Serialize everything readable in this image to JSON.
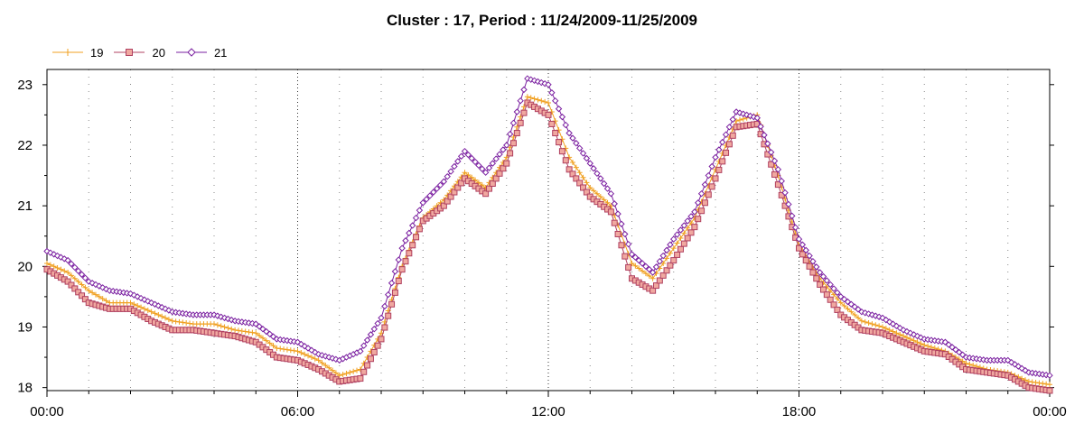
{
  "chart_data": {
    "type": "line",
    "title": "Cluster : 17, Period : 11/24/2009-11/25/2009",
    "xlabel": "",
    "ylabel": "",
    "x_tick_labels": [
      "00:00",
      "06:00",
      "12:00",
      "18:00",
      "00:00"
    ],
    "y_ticks": [
      18,
      19,
      20,
      21,
      22,
      23
    ],
    "xlim": [
      0,
      24
    ],
    "ylim": [
      17.95,
      23.25
    ],
    "grid": "dotted",
    "legend_position": "top-left",
    "x": [
      0,
      0.5,
      1,
      1.5,
      2,
      2.5,
      3,
      3.5,
      4,
      4.5,
      5,
      5.5,
      6,
      6.5,
      7,
      7.5,
      8,
      8.5,
      9,
      9.5,
      10,
      10.5,
      11,
      11.5,
      12,
      12.5,
      13,
      13.5,
      14,
      14.5,
      15,
      15.5,
      16,
      16.5,
      17,
      17.5,
      18,
      18.5,
      19,
      19.5,
      20,
      20.5,
      21,
      21.5,
      22,
      22.5,
      23,
      23.5,
      24
    ],
    "series": [
      {
        "name": "19",
        "color": "#f0a020",
        "marker": "plus",
        "values": [
          20.05,
          19.9,
          19.6,
          19.4,
          19.4,
          19.25,
          19.1,
          19.05,
          19.05,
          18.95,
          18.9,
          18.65,
          18.6,
          18.45,
          18.2,
          18.3,
          18.9,
          20.0,
          20.8,
          21.1,
          21.55,
          21.3,
          21.8,
          22.8,
          22.7,
          21.8,
          21.3,
          21.0,
          20.05,
          19.8,
          20.3,
          20.8,
          21.6,
          22.4,
          22.5,
          21.5,
          20.35,
          19.8,
          19.4,
          19.1,
          19.0,
          18.85,
          18.7,
          18.6,
          18.4,
          18.3,
          18.25,
          18.1,
          18.05
        ]
      },
      {
        "name": "20",
        "color": "#b04060",
        "fill": "#f0a8a0",
        "marker": "square",
        "values": [
          19.95,
          19.75,
          19.4,
          19.3,
          19.3,
          19.1,
          18.95,
          18.95,
          18.9,
          18.85,
          18.75,
          18.5,
          18.45,
          18.3,
          18.1,
          18.15,
          18.8,
          19.95,
          20.75,
          21.0,
          21.45,
          21.2,
          21.7,
          22.7,
          22.5,
          21.6,
          21.15,
          20.9,
          19.8,
          19.6,
          20.1,
          20.65,
          21.45,
          22.3,
          22.35,
          21.35,
          20.3,
          19.7,
          19.2,
          18.95,
          18.9,
          18.75,
          18.6,
          18.55,
          18.3,
          18.25,
          18.2,
          18.0,
          17.95
        ]
      },
      {
        "name": "21",
        "color": "#7a1fa0",
        "marker": "diamond",
        "values": [
          20.25,
          20.1,
          19.75,
          19.6,
          19.55,
          19.4,
          19.25,
          19.2,
          19.2,
          19.1,
          19.05,
          18.8,
          18.75,
          18.55,
          18.45,
          18.6,
          19.15,
          20.3,
          21.05,
          21.4,
          21.9,
          21.55,
          22.0,
          23.1,
          23.0,
          22.2,
          21.7,
          21.2,
          20.2,
          19.9,
          20.45,
          20.9,
          21.8,
          22.55,
          22.45,
          21.6,
          20.45,
          19.9,
          19.5,
          19.25,
          19.15,
          18.95,
          18.8,
          18.75,
          18.5,
          18.45,
          18.45,
          18.25,
          18.2
        ]
      }
    ]
  }
}
